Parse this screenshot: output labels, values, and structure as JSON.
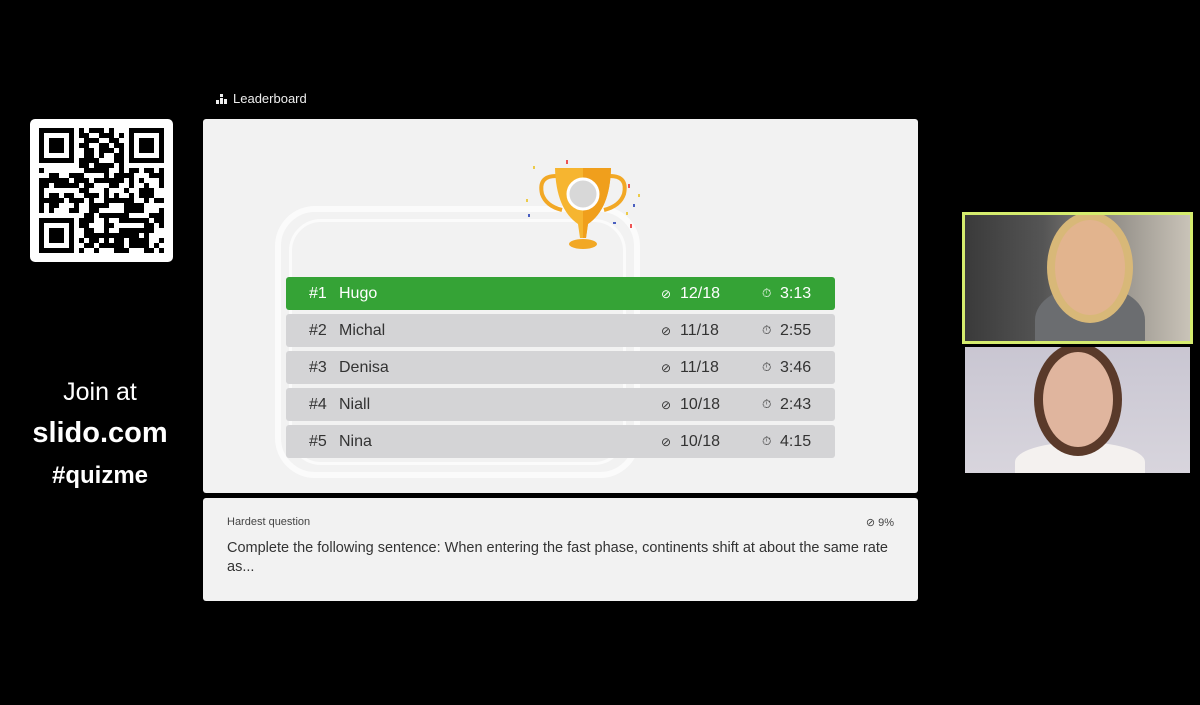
{
  "sidebar": {
    "join_line1": "Join at",
    "join_line2": "slido.com",
    "join_line3": "#quizme"
  },
  "leaderboard": {
    "label": "Leaderboard",
    "icon": "bar-chart-icon",
    "rows": [
      {
        "rank": "#1",
        "name": "Hugo",
        "score": "12/18",
        "time": "3:13"
      },
      {
        "rank": "#2",
        "name": "Michal",
        "score": "11/18",
        "time": "2:55"
      },
      {
        "rank": "#3",
        "name": "Denisa",
        "score": "11/18",
        "time": "3:46"
      },
      {
        "rank": "#4",
        "name": "Niall",
        "score": "10/18",
        "time": "2:43"
      },
      {
        "rank": "#5",
        "name": "Nina",
        "score": "10/18",
        "time": "4:15"
      }
    ]
  },
  "hardest": {
    "label": "Hardest question",
    "percent": "9%",
    "question": "Complete the following sentence: When entering the fast phase, continents shift at about the same rate as..."
  },
  "colors": {
    "winner": "#35a336",
    "row": "#d4d4d6",
    "active_speaker_border": "#d5ec6e"
  }
}
